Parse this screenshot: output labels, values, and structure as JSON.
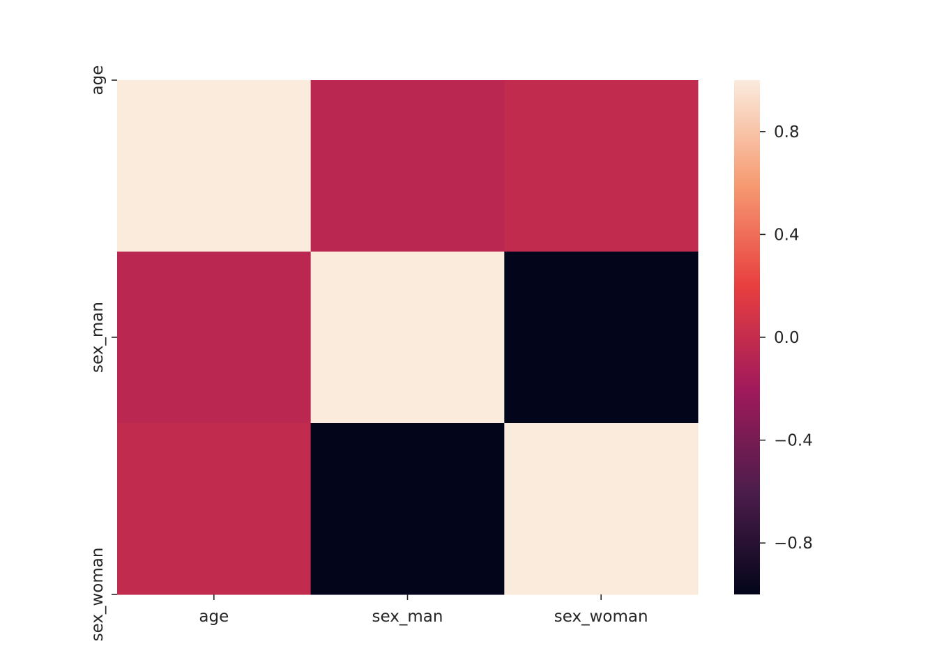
{
  "chart_data": {
    "type": "heatmap",
    "title": "",
    "xlabel": "",
    "ylabel": "",
    "x_categories": [
      "age",
      "sex_man",
      "sex_woman"
    ],
    "y_categories": [
      "age",
      "sex_man",
      "sex_woman"
    ],
    "values": [
      [
        1.0,
        -0.06,
        -0.02
      ],
      [
        -0.06,
        1.0,
        -1.0
      ],
      [
        -0.02,
        -1.0,
        1.0
      ]
    ],
    "colorbar": {
      "range": [
        -1.0,
        1.0
      ],
      "ticks": [
        0.8,
        0.4,
        0.0,
        -0.4,
        -0.8
      ],
      "tick_labels": [
        "0.8",
        "0.4",
        "0.0",
        "−0.4",
        "−0.8"
      ]
    },
    "colormap": [
      "#03051a",
      "#4c1d4b",
      "#a11a5b",
      "#e83f3f",
      "#f69c73",
      "#faebdd"
    ],
    "grid": false
  }
}
